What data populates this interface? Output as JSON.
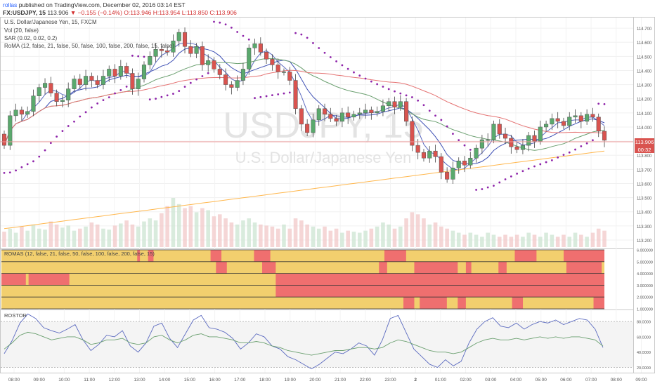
{
  "header": {
    "user": "rollas",
    "published": "published on TradingView.com, December 02, 2016 03:14 EST",
    "symbol": "FX:USDJPY, 15",
    "last": "113.906",
    "change_arrow": "▼",
    "change": "−0.155 (−0.14%)",
    "o": "O:113.946",
    "h": "H:113.954",
    "l": "L:113.850",
    "c": "C:113.906"
  },
  "legend": {
    "title": "U.S. Dollar/Japanese Yen, 15, FXCM",
    "vol": "Vol (20, false)",
    "sar": "SAR (0.02, 0.02, 0.2)",
    "roma": "RoMA (12, false, 21, false, 50, false, 100, false, 200, false, 15, false)"
  },
  "watermark": {
    "symbol": "USDJPY, 15",
    "name": "U.S. Dollar/Japanese Yen"
  },
  "price_badge": {
    "price": "113.906",
    "timer": "00:32"
  },
  "pane2": {
    "label": "ROMAS (12, false, 21, false, 50, false, 100, false, 200, false, 15)"
  },
  "pane3": {
    "label": "ROSTOR"
  },
  "colors": {
    "up": "#5aa96d",
    "down": "#d9534f",
    "sar": "#8e24aa",
    "ma12": "#5c6bc0",
    "ma21": "#3f51b5",
    "ma50": "#6a9f6f",
    "ma100": "#e57373",
    "ma200": "#ffb74d",
    "band_yellow": "#f2cf6e",
    "band_red": "#ef6f6f"
  },
  "chart_data": [
    {
      "type": "candlestick",
      "title": "U.S. Dollar/Japanese Yen, 15, FXCM",
      "ylim": [
        113.15,
        114.77
      ],
      "yticks": [
        "114.700",
        "114.600",
        "114.500",
        "114.400",
        "114.300",
        "114.200",
        "114.100",
        "114.000",
        "113.900",
        "113.800",
        "113.700",
        "113.600",
        "113.500",
        "113.400",
        "113.300",
        "113.200"
      ],
      "xticks": [
        "08:00",
        "09:00",
        "10:00",
        "11:00",
        "12:00",
        "13:00",
        "14:00",
        "15:00",
        "16:00",
        "17:00",
        "18:00",
        "19:00",
        "20:00",
        "21:00",
        "22:00",
        "23:00",
        "2",
        "01:00",
        "02:00",
        "03:00",
        "04:00",
        "05:00",
        "06:00",
        "07:00",
        "08:00",
        "09:00"
      ],
      "close": [
        113.87,
        114.08,
        114.12,
        114.09,
        114.11,
        114.22,
        114.28,
        114.31,
        114.24,
        114.18,
        114.19,
        114.27,
        114.34,
        114.3,
        114.36,
        114.33,
        114.3,
        114.36,
        114.41,
        114.36,
        114.43,
        114.38,
        114.27,
        114.34,
        114.44,
        114.5,
        114.55,
        114.54,
        114.53,
        114.61,
        114.67,
        114.57,
        114.52,
        114.57,
        114.44,
        114.47,
        114.41,
        114.37,
        114.3,
        114.28,
        114.33,
        114.41,
        114.56,
        114.59,
        114.53,
        114.48,
        114.44,
        114.39,
        114.39,
        114.33,
        114.13,
        114.02,
        113.96,
        114.05,
        114.13,
        114.09,
        114.06,
        114.04,
        114.1,
        114.07,
        114.09,
        114.1,
        114.12,
        114.1,
        114.11,
        114.15,
        114.18,
        114.14,
        114.18,
        114.04,
        113.87,
        113.82,
        113.78,
        113.83,
        113.79,
        113.68,
        113.63,
        113.71,
        113.76,
        113.73,
        113.78,
        113.85,
        113.91,
        113.91,
        114.02,
        113.95,
        113.92,
        113.86,
        113.84,
        113.87,
        113.94,
        113.9,
        114.0,
        114.02,
        114.06,
        114.04,
        114.01,
        114.07,
        114.08,
        114.04,
        114.09,
        114.07,
        113.97,
        113.906
      ],
      "volume": [
        15,
        18,
        14,
        20,
        16,
        22,
        18,
        17,
        25,
        22,
        19,
        21,
        16,
        18,
        20,
        24,
        22,
        18,
        17,
        21,
        23,
        26,
        22,
        20,
        25,
        28,
        26,
        33,
        40,
        48,
        42,
        38,
        40,
        34,
        38,
        36,
        30,
        32,
        28,
        24,
        22,
        26,
        28,
        24,
        22,
        21,
        20,
        18,
        22,
        18,
        28,
        26,
        22,
        20,
        18,
        20,
        16,
        18,
        14,
        16,
        15,
        14,
        16,
        18,
        20,
        24,
        22,
        18,
        20,
        28,
        34,
        32,
        28,
        22,
        24,
        20,
        18,
        16,
        14,
        12,
        14,
        12,
        10,
        14,
        12,
        10,
        12,
        10,
        12,
        10,
        14,
        12,
        10,
        14,
        12,
        10,
        12,
        10,
        14,
        12,
        10,
        14,
        18,
        16
      ]
    },
    {
      "type": "heatmap",
      "label": "ROMAS (12, false, 21, false, 50, false, 100, false, 200, false, 15)",
      "ylim": [
        1,
        6
      ],
      "yticks": [
        "6.000000",
        "5.000000",
        "4.000000",
        "3.000000",
        "2.000000",
        "1.000000"
      ],
      "rows": [
        {
          "level": 5.5,
          "red_ranges": [
            [
              50,
              51
            ],
            [
              54,
              56
            ],
            [
              77,
              81
            ],
            [
              93,
              99
            ],
            [
              141,
              149
            ],
            [
              189,
              197
            ],
            [
              207,
              222
            ]
          ]
        },
        {
          "level": 4.5,
          "red_ranges": [
            [
              79,
              83
            ],
            [
              96,
              101
            ],
            [
              139,
              142
            ],
            [
              152,
              168
            ],
            [
              171,
              173
            ],
            [
              183,
              186
            ],
            [
              208,
              221
            ]
          ]
        },
        {
          "level": 3.5,
          "red_ranges": [
            [
              0,
              9
            ],
            [
              10,
              25
            ],
            [
              101,
              222
            ]
          ]
        },
        {
          "level": 2.5,
          "red_ranges": [
            [
              101,
              222
            ]
          ]
        },
        {
          "level": 1.5,
          "red_ranges": [
            [
              148,
              152
            ],
            [
              154,
              164
            ],
            [
              168,
              171
            ],
            [
              188,
              192
            ],
            [
              218,
              222
            ]
          ]
        }
      ]
    },
    {
      "type": "line",
      "label": "ROSTOR",
      "ylim": [
        14,
        93
      ],
      "yticks": [
        "80.0000",
        "60.0000",
        "40.0000",
        "20.0000"
      ],
      "series": [
        {
          "values": [
            38,
            55,
            78,
            90,
            84,
            72,
            68,
            65,
            70,
            76,
            56,
            42,
            50,
            62,
            60,
            68,
            48,
            40,
            52,
            74,
            78,
            58,
            46,
            64,
            82,
            88,
            72,
            70,
            66,
            58,
            44,
            52,
            64,
            60,
            48,
            44,
            34,
            30,
            24,
            18,
            24,
            32,
            40,
            38,
            44,
            52,
            48,
            36,
            56,
            84,
            88,
            66,
            44,
            34,
            24,
            20,
            30,
            22,
            28,
            52,
            70,
            80,
            85,
            74,
            72,
            78,
            70,
            76,
            80,
            78,
            82,
            76,
            80,
            84,
            82,
            70,
            46
          ]
        },
        {
          "values": [
            44,
            52,
            62,
            66,
            64,
            60,
            56,
            58,
            60,
            60,
            56,
            50,
            52,
            56,
            56,
            58,
            52,
            50,
            52,
            60,
            62,
            56,
            52,
            56,
            62,
            64,
            60,
            60,
            58,
            56,
            52,
            52,
            54,
            52,
            48,
            46,
            42,
            40,
            38,
            36,
            38,
            40,
            42,
            42,
            44,
            46,
            46,
            44,
            46,
            52,
            56,
            54,
            50,
            46,
            42,
            40,
            40,
            38,
            40,
            46,
            52,
            56,
            58,
            56,
            56,
            58,
            56,
            58,
            60,
            58,
            60,
            58,
            60,
            60,
            58,
            56,
            48
          ]
        }
      ]
    }
  ]
}
